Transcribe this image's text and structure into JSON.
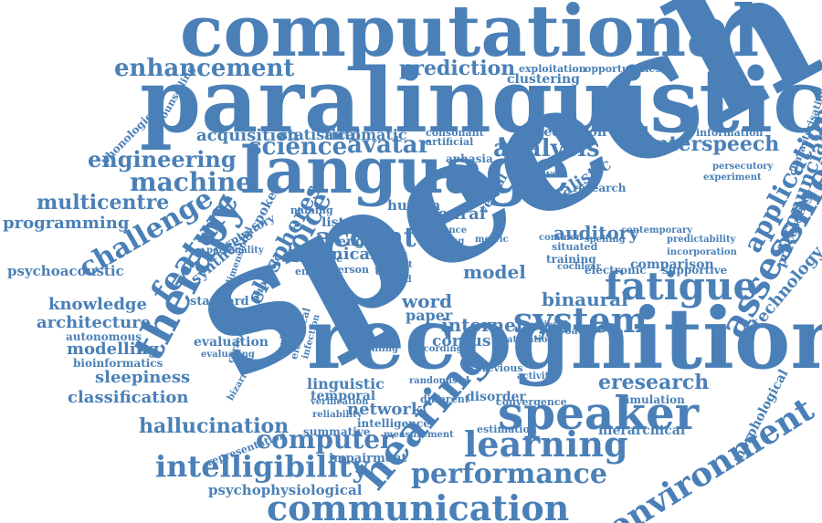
{
  "palette": {
    "word_color": "#4a80b7",
    "background": "#ffffff"
  },
  "words": [
    "computational",
    "paralinguistic",
    "language",
    "speech",
    "recognition",
    "hearing",
    "speaker",
    "fatigue",
    "therapy",
    "system",
    "assessment",
    "application",
    "pronunciation",
    "communication",
    "intelligibility",
    "performance",
    "learning",
    "environment",
    "enhancement",
    "prediction",
    "science",
    "avatar",
    "analysis",
    "engineering",
    "machine",
    "multicentre",
    "challenge",
    "feature",
    "voice",
    "accent",
    "elospheres",
    "programming",
    "psychoacoustic",
    "knowledge",
    "architecture",
    "autonomous",
    "modelling",
    "bioinformatics",
    "sleepiness",
    "classification",
    "hallucination",
    "computer",
    "psychophysiological",
    "interspeech",
    "acquisition",
    "auditory",
    "binaural",
    "model",
    "word",
    "paper",
    "internet",
    "corpus",
    "evaluation",
    "linguistic",
    "temporal",
    "network",
    "intelligence",
    "eresearch",
    "simulation",
    "hierarchical",
    "morphological",
    "technology",
    "processing",
    "realistic",
    "comparison",
    "supportive",
    "electronic",
    "clinical",
    "neural",
    "human",
    "english",
    "task",
    "synthesis",
    "standard",
    "statistical",
    "automatic",
    "reduction",
    "exploitation",
    "clustering",
    "opportunities",
    "information",
    "characterisation",
    "experiment",
    "persecutory",
    "phonological",
    "counselling",
    "cognitive",
    "aphasia",
    "consonant",
    "artificial",
    "research",
    "training",
    "situated",
    "cochlear",
    "convergence",
    "disorder",
    "estimation",
    "summative",
    "impairment",
    "representation",
    "verification",
    "previous",
    "approach",
    "profiling",
    "recording",
    "attention",
    "respiratory",
    "spoken",
    "listener",
    "naming",
    "phonetic",
    "entropy",
    "person",
    "studies",
    "different",
    "average",
    "incorporation",
    "measurement",
    "variation",
    "electrical",
    "infection",
    "dimensional",
    "correlation",
    "effect",
    "aided",
    "rating",
    "inference",
    "verbal",
    "metric",
    "retrieval",
    "common",
    "spelling",
    "activity",
    "randomised",
    "reliability",
    "evaluating",
    "contemporary",
    "bizarre",
    "predictability",
    "personality",
    "enhanced",
    "segmental"
  ]
}
